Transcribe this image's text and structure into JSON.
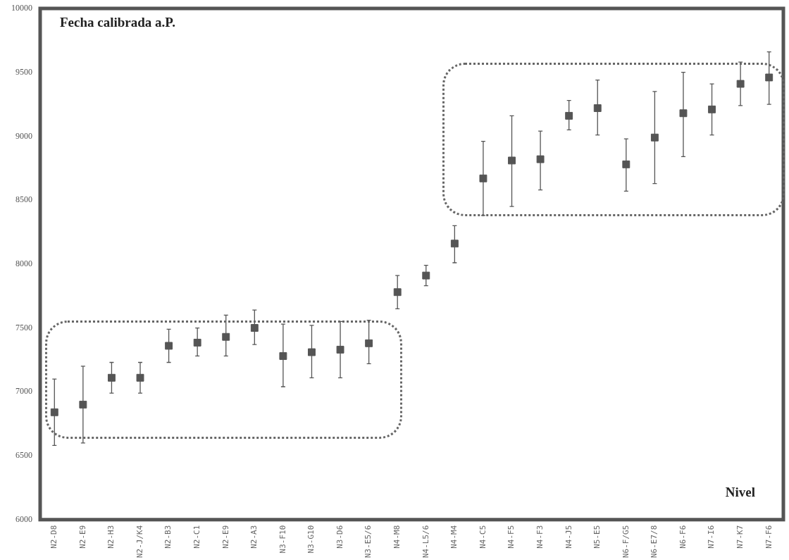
{
  "chart_data": {
    "type": "scatter",
    "xlabel": "Nivel",
    "ylabel": "Fecha calibrada a.P.",
    "categories": [
      "N2-D8",
      "N2-E9",
      "N2-H3",
      "N2-J/K4",
      "N2-B3",
      "N2-C1",
      "N2-E9",
      "N2-A3",
      "N3-F10",
      "N3-G10",
      "N3-D6",
      "N3-E5/6",
      "N4-M8",
      "N4-L5/6",
      "N4-M4",
      "N4-C5",
      "N4-F5",
      "N4-F3",
      "N4-J5",
      "N5-E5",
      "N6-F/G5",
      "N6-E7/8",
      "N6-F6",
      "N7-I6",
      "N7-K7",
      "N7-F6"
    ],
    "values": [
      6840,
      6900,
      7110,
      7110,
      7360,
      7385,
      7430,
      7500,
      7280,
      7310,
      7330,
      7380,
      7780,
      7910,
      8160,
      8670,
      8810,
      8820,
      9160,
      9220,
      8780,
      8990,
      9180,
      9210,
      9410,
      9460
    ],
    "errors": [
      [
        6580,
        7100
      ],
      [
        6600,
        7200
      ],
      [
        6990,
        7230
      ],
      [
        6990,
        7230
      ],
      [
        7230,
        7490
      ],
      [
        7280,
        7500
      ],
      [
        7280,
        7600
      ],
      [
        7370,
        7640
      ],
      [
        7040,
        7530
      ],
      [
        7110,
        7520
      ],
      [
        7110,
        7550
      ],
      [
        7220,
        7560
      ],
      [
        7650,
        7910
      ],
      [
        7830,
        7990
      ],
      [
        8010,
        8300
      ],
      [
        8380,
        8960
      ],
      [
        8450,
        9160
      ],
      [
        8580,
        9040
      ],
      [
        9050,
        9280
      ],
      [
        9010,
        9440
      ],
      [
        8570,
        8980
      ],
      [
        8630,
        9350
      ],
      [
        8840,
        9500
      ],
      [
        9010,
        9410
      ],
      [
        9240,
        9580
      ],
      [
        9250,
        9660
      ]
    ],
    "color": "#555555",
    "marker": "square",
    "grid": false,
    "legend": false,
    "ylim": [
      6000,
      10000
    ],
    "yticks": [
      6000,
      6500,
      7000,
      7500,
      8000,
      8500,
      9000,
      9500,
      10000
    ]
  }
}
